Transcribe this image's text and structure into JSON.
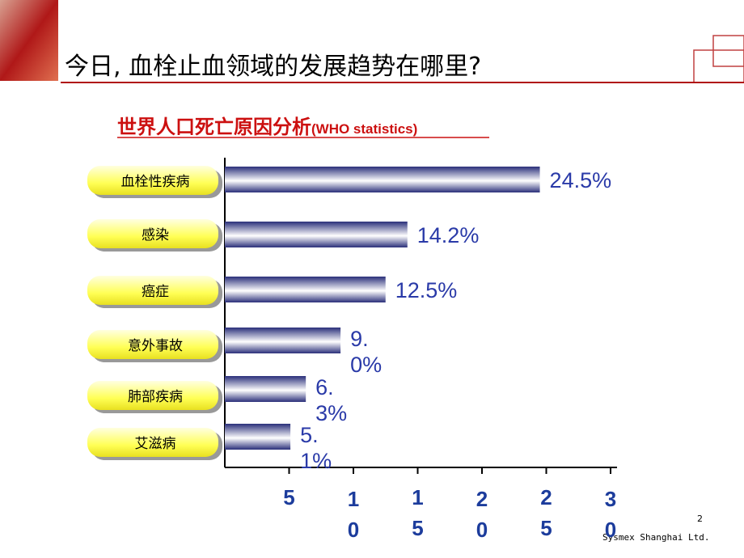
{
  "header": {
    "title": "今日, 血栓止血领域的发展趋势在哪里?"
  },
  "chart_data": {
    "type": "barh",
    "title": "世界人口死亡原因分析",
    "title_note": "(WHO statistics)",
    "categories": [
      "血栓性疾病",
      "感染",
      "癌症",
      "意外事故",
      "肺部疾病",
      "艾滋病"
    ],
    "values": [
      24.5,
      14.2,
      12.5,
      9.0,
      6.3,
      5.1
    ],
    "value_labels": [
      "24.5%",
      "14.2%",
      "12.5%",
      "9.0%",
      "6.3%",
      "5.1%"
    ],
    "color": "#2a2f7a",
    "xlim": [
      0,
      30
    ],
    "xticks": [
      5,
      10,
      15,
      20,
      25,
      30
    ]
  },
  "footer": {
    "page": "2",
    "company": "Sysmex Shanghai Ltd."
  }
}
